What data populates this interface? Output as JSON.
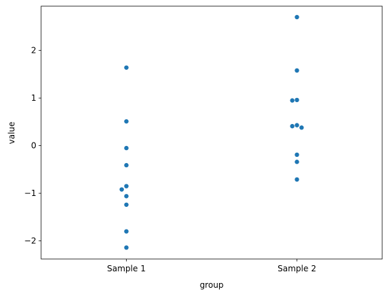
{
  "chart_data": {
    "type": "scatter",
    "variant": "swarm",
    "xlabel": "group",
    "ylabel": "value",
    "categories": [
      "Sample 1",
      "Sample 2"
    ],
    "ylim": [
      -2.38,
      2.93
    ],
    "yticks": [
      -2,
      -1,
      0,
      1,
      2
    ],
    "ytick_labels": [
      "−2",
      "−1",
      "0",
      "1",
      "2"
    ],
    "grid": false,
    "marker_color": "#1f77b4",
    "series": [
      {
        "category": "Sample 1",
        "values": [
          1.64,
          0.51,
          -0.05,
          -0.41,
          -0.85,
          -0.92,
          -1.06,
          -1.24,
          -1.8,
          -2.14
        ]
      },
      {
        "category": "Sample 2",
        "values": [
          2.7,
          1.58,
          0.96,
          0.95,
          0.43,
          0.41,
          0.38,
          -0.19,
          -0.34,
          -0.71
        ]
      }
    ]
  }
}
